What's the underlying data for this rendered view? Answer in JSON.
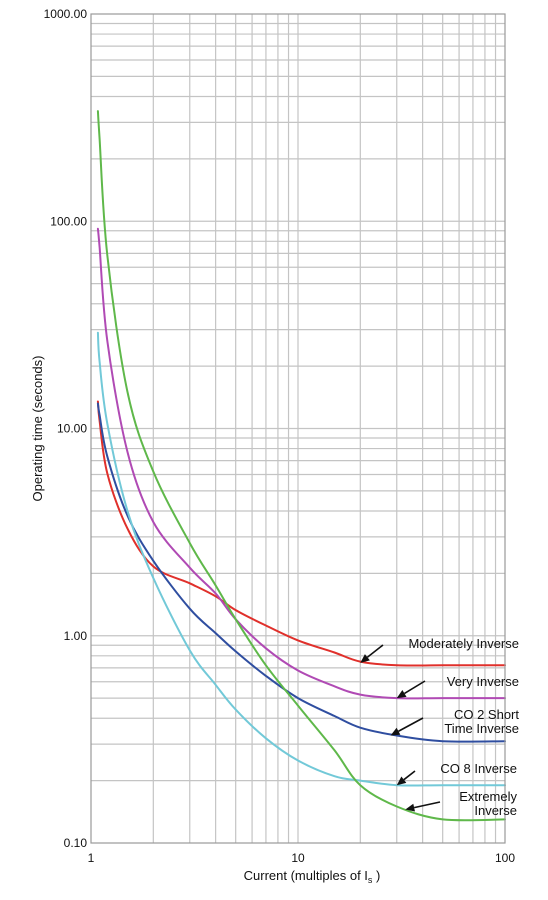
{
  "chart_data": {
    "type": "line",
    "x_scale": "log",
    "y_scale": "log",
    "xlim": [
      1,
      100
    ],
    "ylim": [
      0.1,
      1000
    ],
    "grid": true,
    "legend": "none",
    "xlabel": "Current (multiples of I",
    "xlabel_sub": "s",
    "xlabel_end": " )",
    "ylabel": "Operating time (seconds)",
    "x_ticks": [
      {
        "value": 1,
        "label": "1"
      },
      {
        "value": 10,
        "label": "10"
      },
      {
        "value": 100,
        "label": "100"
      }
    ],
    "y_ticks": [
      {
        "value": 0.1,
        "label": "0.10"
      },
      {
        "value": 1,
        "label": "1.00"
      },
      {
        "value": 10,
        "label": "10.00"
      },
      {
        "value": 100,
        "label": "100.00"
      },
      {
        "value": 1000,
        "label": "1000.00"
      }
    ],
    "series": [
      {
        "name": "Moderately Inverse",
        "color": "#e0302b",
        "x": [
          1.08,
          1.1,
          1.2,
          1.5,
          2,
          3,
          4,
          5,
          7,
          10,
          15,
          20,
          30,
          50,
          100
        ],
        "y": [
          13.5,
          10.9,
          6.05,
          3.29,
          2.16,
          1.79,
          1.55,
          1.33,
          1.12,
          0.95,
          0.83,
          0.75,
          0.72,
          0.72,
          0.72
        ]
      },
      {
        "name": "Very Inverse",
        "color": "#b04ab4",
        "x": [
          1.08,
          1.1,
          1.2,
          1.5,
          2,
          3,
          4,
          5,
          7,
          10,
          15,
          20,
          30,
          50,
          100
        ],
        "y": [
          92,
          75,
          26.3,
          7.7,
          3.54,
          2.13,
          1.6,
          1.2,
          0.87,
          0.68,
          0.57,
          0.52,
          0.5,
          0.5,
          0.5
        ]
      },
      {
        "name": "CO 2 Short Time Inverse",
        "color": "#2f4ea0",
        "x": [
          1.08,
          1.1,
          1.2,
          1.5,
          2,
          3,
          4,
          5,
          7,
          10,
          15,
          20,
          30,
          50,
          100
        ],
        "y": [
          13.2,
          11.6,
          7.3,
          3.8,
          2.3,
          1.35,
          1.03,
          0.84,
          0.64,
          0.5,
          0.41,
          0.36,
          0.33,
          0.31,
          0.31
        ]
      },
      {
        "name": "CO 8 Inverse",
        "color": "#72c9d8",
        "x": [
          1.08,
          1.1,
          1.2,
          1.5,
          2,
          3,
          4,
          5,
          7,
          10,
          15,
          20,
          30,
          50,
          100
        ],
        "y": [
          29,
          21,
          10.5,
          4.0,
          1.9,
          0.85,
          0.58,
          0.44,
          0.32,
          0.25,
          0.21,
          0.2,
          0.19,
          0.19,
          0.19
        ]
      },
      {
        "name": "Extremely Inverse",
        "color": "#5fb84a",
        "x": [
          1.08,
          1.1,
          1.2,
          1.5,
          2,
          3,
          4,
          5,
          7,
          10,
          15,
          20,
          30,
          50,
          100
        ],
        "y": [
          340,
          250,
          68,
          15,
          6.2,
          2.8,
          1.75,
          1.2,
          0.72,
          0.46,
          0.28,
          0.19,
          0.15,
          0.13,
          0.13
        ]
      }
    ],
    "annotations": [
      {
        "lines": [
          "Moderately Inverse"
        ],
        "series": 0,
        "x": 20,
        "y": 0.74
      },
      {
        "lines": [
          "Very Inverse"
        ],
        "series": 1,
        "x": 30,
        "y": 0.5
      },
      {
        "lines": [
          "CO 2 Short",
          "Time Inverse"
        ],
        "series": 2,
        "x": 28,
        "y": 0.33
      },
      {
        "lines": [
          "CO 8 Inverse"
        ],
        "series": 3,
        "x": 30,
        "y": 0.19
      },
      {
        "lines": [
          "Extremely",
          "Inverse"
        ],
        "series": 4,
        "x": 33,
        "y": 0.145
      }
    ]
  }
}
